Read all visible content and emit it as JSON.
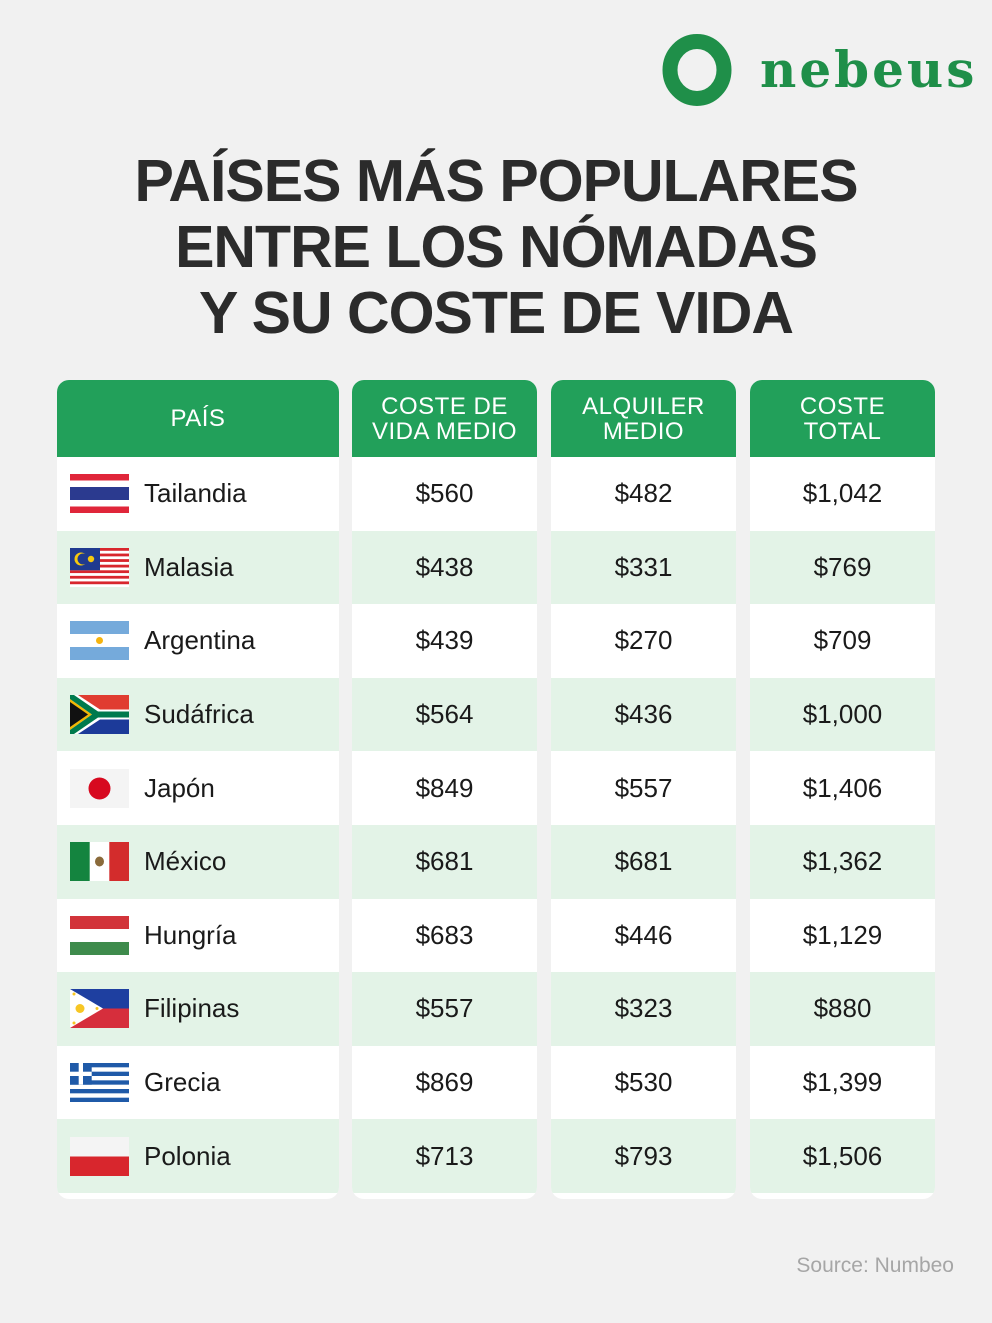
{
  "brand": {
    "name": "nebeus",
    "color": "#1f8f49"
  },
  "title": {
    "line1": "PAÍSES MÁS POPULARES",
    "line2": "ENTRE LOS NÓMADAS",
    "line3": "Y SU COSTE DE VIDA"
  },
  "colors": {
    "header_green": "#22a05a",
    "row_alt": "#e3f3e7"
  },
  "table": {
    "headers": {
      "country": "PAÍS",
      "cost": "COSTE DE\nVIDA MEDIO",
      "rent": "ALQUILER\nMEDIO",
      "total": "COSTE\nTOTAL"
    },
    "rows": [
      {
        "country": "Tailandia",
        "flag": "thailand-flag",
        "cost": "$560",
        "rent": "$482",
        "total": "$1,042"
      },
      {
        "country": "Malasia",
        "flag": "malaysia-flag",
        "cost": "$438",
        "rent": "$331",
        "total": "$769"
      },
      {
        "country": "Argentina",
        "flag": "argentina-flag",
        "cost": "$439",
        "rent": "$270",
        "total": "$709"
      },
      {
        "country": "Sudáfrica",
        "flag": "south-africa-flag",
        "cost": "$564",
        "rent": "$436",
        "total": "$1,000"
      },
      {
        "country": "Japón",
        "flag": "japan-flag",
        "cost": "$849",
        "rent": "$557",
        "total": "$1,406"
      },
      {
        "country": "México",
        "flag": "mexico-flag",
        "cost": "$681",
        "rent": "$681",
        "total": "$1,362"
      },
      {
        "country": "Hungría",
        "flag": "hungary-flag",
        "cost": "$683",
        "rent": "$446",
        "total": "$1,129"
      },
      {
        "country": "Filipinas",
        "flag": "philippines-flag",
        "cost": "$557",
        "rent": "$323",
        "total": "$880"
      },
      {
        "country": "Grecia",
        "flag": "greece-flag",
        "cost": "$869",
        "rent": "$530",
        "total": "$1,399"
      },
      {
        "country": "Polonia",
        "flag": "poland-flag",
        "cost": "$713",
        "rent": "$793",
        "total": "$1,506"
      }
    ]
  },
  "source": "Source: Numbeo"
}
